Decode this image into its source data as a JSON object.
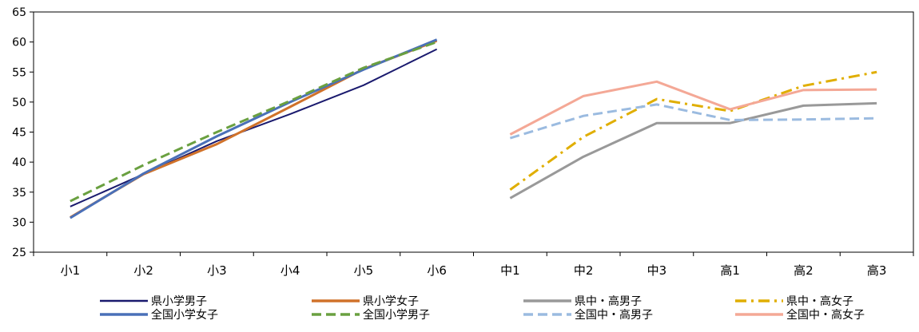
{
  "chart_data": {
    "type": "line",
    "title": "",
    "xlabel": "",
    "ylabel": "",
    "categories": [
      "小1",
      "小2",
      "小3",
      "小4",
      "小5",
      "小6",
      "中1",
      "中2",
      "中3",
      "高1",
      "高2",
      "高3"
    ],
    "ylim": [
      25,
      65
    ],
    "yticks": [
      25,
      30,
      35,
      40,
      45,
      50,
      55,
      60,
      65
    ],
    "grid": false,
    "legend_position": "bottom",
    "series": [
      {
        "name": "県小学男子",
        "color": "#1a1a6e",
        "style": "solid",
        "width": 2,
        "values": [
          32.6,
          38.0,
          43.5,
          48.0,
          52.8,
          58.8,
          null,
          null,
          null,
          null,
          null,
          null
        ]
      },
      {
        "name": "県小学女子",
        "color": "#d0722a",
        "style": "solid",
        "width": 3,
        "values": [
          30.8,
          38.0,
          43.0,
          49.2,
          55.5,
          60.2,
          null,
          null,
          null,
          null,
          null,
          null
        ]
      },
      {
        "name": "県中・高男子",
        "color": "#999999",
        "style": "solid",
        "width": 3,
        "values": [
          null,
          null,
          null,
          null,
          null,
          null,
          34.0,
          40.9,
          46.5,
          46.5,
          49.4,
          49.8
        ]
      },
      {
        "name": "県中・高女子",
        "color": "#e0ae00",
        "style": "dashdot",
        "width": 3,
        "values": [
          null,
          null,
          null,
          null,
          null,
          null,
          35.4,
          44.2,
          50.5,
          48.5,
          52.7,
          55.0
        ]
      },
      {
        "name": "全国小学女子",
        "color": "#4a70b8",
        "style": "solid",
        "width": 3,
        "values": [
          30.7,
          38.1,
          44.3,
          50.0,
          55.4,
          60.4,
          null,
          null,
          null,
          null,
          null,
          null
        ]
      },
      {
        "name": "全国小学男子",
        "color": "#6aa040",
        "style": "dashed",
        "width": 3,
        "values": [
          33.5,
          39.5,
          45.0,
          50.2,
          55.7,
          60.0,
          null,
          null,
          null,
          null,
          null,
          null
        ]
      },
      {
        "name": "全国中・高男子",
        "color": "#9bbbe0",
        "style": "dashed",
        "width": 3,
        "values": [
          null,
          null,
          null,
          null,
          null,
          null,
          44.0,
          47.7,
          49.6,
          47.0,
          47.1,
          47.3
        ]
      },
      {
        "name": "全国中・高女子",
        "color": "#f4a896",
        "style": "solid",
        "width": 3,
        "values": [
          null,
          null,
          null,
          null,
          null,
          null,
          44.6,
          51.0,
          53.4,
          48.8,
          52.0,
          52.1
        ]
      }
    ]
  }
}
